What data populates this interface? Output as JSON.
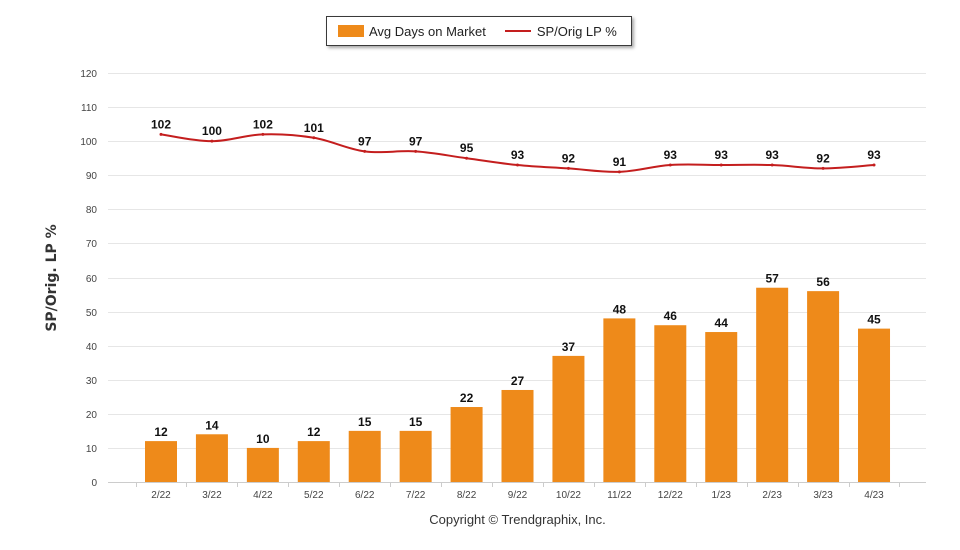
{
  "chart_data": {
    "type": "bar",
    "title": "",
    "xlabel": "",
    "ylabel": "SP/Orig. LP %",
    "ylim": [
      0,
      120
    ],
    "yticks": [
      0,
      10,
      20,
      30,
      40,
      50,
      60,
      70,
      80,
      90,
      100,
      110,
      120
    ],
    "grid": true,
    "legend_position": "top-center",
    "categories": [
      "2/22",
      "3/22",
      "4/22",
      "5/22",
      "6/22",
      "7/22",
      "8/22",
      "9/22",
      "10/22",
      "11/22",
      "12/22",
      "1/23",
      "2/23",
      "3/23",
      "4/23"
    ],
    "series": [
      {
        "name": "Avg Days on Market",
        "type": "bar",
        "color": "#EE8A1A",
        "values": [
          12,
          14,
          10,
          12,
          15,
          15,
          22,
          27,
          37,
          48,
          46,
          44,
          57,
          56,
          45
        ]
      },
      {
        "name": "SP/Orig LP %",
        "type": "line",
        "color": "#C41E1E",
        "values": [
          102,
          100,
          102,
          101,
          97,
          97,
          95,
          93,
          92,
          91,
          93,
          93,
          93,
          92,
          93
        ]
      }
    ]
  },
  "legend": {
    "bar_label": "Avg Days on Market",
    "line_label": "SP/Orig LP %"
  },
  "footer": {
    "copyright": "Copyright © Trendgraphix, Inc."
  }
}
